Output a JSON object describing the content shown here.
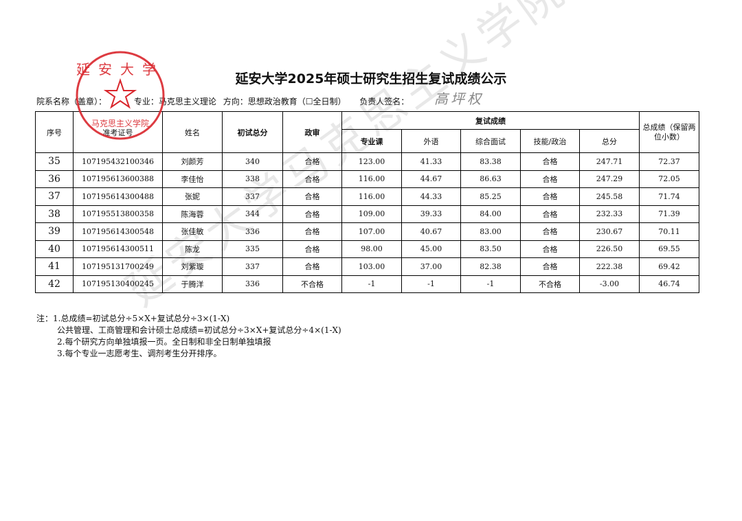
{
  "title": "延安大学2025年硕士研究生招生复试成绩公示",
  "subline": {
    "dept": "院系名称（盖章）：",
    "major": "专业：马克思主义理论",
    "direction": "方向：思想政治教育（☐全日制）",
    "signer": "负责人签名："
  },
  "signature": "高坪权",
  "stamp": {
    "top_text": "延安大学",
    "bottom_text": "马克思主义学院",
    "color": "#d9262c"
  },
  "watermark": "延安大学马克思主义学院",
  "table": {
    "headers": {
      "seq": "序号",
      "exam_id": "准考证号",
      "name": "姓名",
      "prelim": "初试总分",
      "political": "政审",
      "retest_group": "复试成绩",
      "major_course": "专业课",
      "foreign": "外语",
      "interview": "综合面试",
      "skill": "技能/政治",
      "retest_total": "总分",
      "total": "总成绩（保留两位小数）"
    },
    "rows": [
      [
        "35",
        "107195432100346",
        "刘颜芳",
        "340",
        "合格",
        "123.00",
        "41.33",
        "83.38",
        "合格",
        "247.71",
        "72.37"
      ],
      [
        "36",
        "107195613600388",
        "李佳怡",
        "338",
        "合格",
        "116.00",
        "44.67",
        "86.63",
        "合格",
        "247.29",
        "72.05"
      ],
      [
        "37",
        "107195614300488",
        "张妮",
        "337",
        "合格",
        "116.00",
        "44.33",
        "85.25",
        "合格",
        "245.58",
        "71.74"
      ],
      [
        "38",
        "107195513800358",
        "陈海蓉",
        "344",
        "合格",
        "109.00",
        "39.33",
        "84.00",
        "合格",
        "232.33",
        "71.39"
      ],
      [
        "39",
        "107195614300548",
        "张佳敏",
        "336",
        "合格",
        "107.00",
        "40.67",
        "83.00",
        "合格",
        "230.67",
        "70.11"
      ],
      [
        "40",
        "107195614300511",
        "陈龙",
        "335",
        "合格",
        "98.00",
        "45.00",
        "83.50",
        "合格",
        "226.50",
        "69.55"
      ],
      [
        "41",
        "107195131700249",
        "刘紫璇",
        "337",
        "合格",
        "103.00",
        "37.00",
        "82.38",
        "合格",
        "222.38",
        "69.42"
      ],
      [
        "42",
        "107195130400245",
        "于腾洋",
        "336",
        "不合格",
        "-1",
        "-1",
        "-1",
        "不合格",
        "-3.00",
        "46.74"
      ]
    ]
  },
  "notes": [
    "注：1.总成绩=初试总分÷5×X+复试总分÷3×(1-X)",
    "公共管理、工商管理和会计硕士总成绩=初试总分÷3×X+复试总分÷4×(1-X)",
    "2.每个研究方向单独填报一页。全日制和非全日制单独填报",
    "3.每个专业一志愿考生、调剂考生分开排序。"
  ]
}
